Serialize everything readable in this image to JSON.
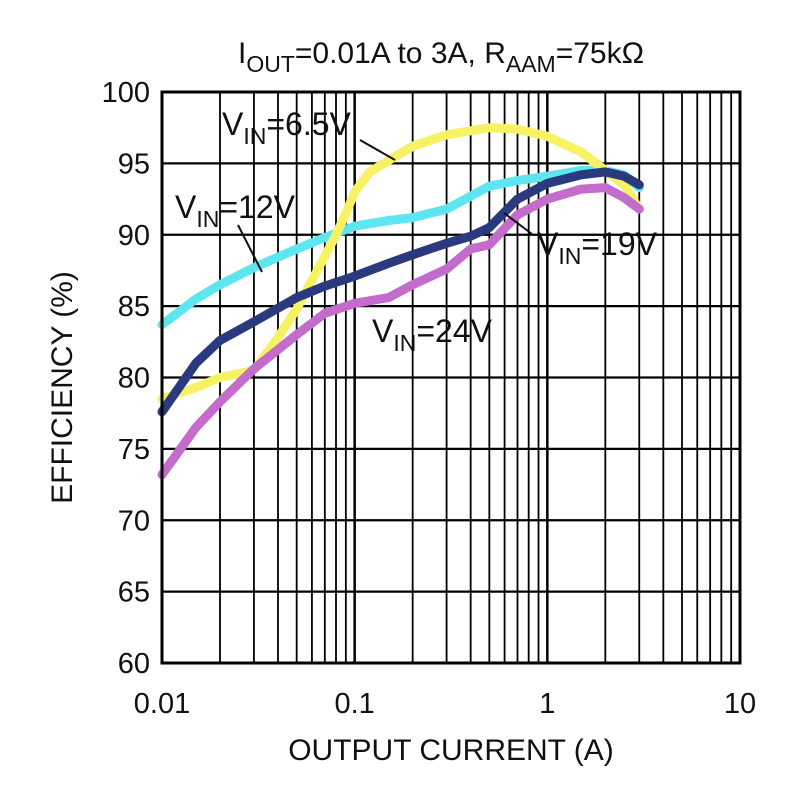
{
  "chart_data": {
    "type": "line",
    "title": {
      "parts": [
        "I",
        "OUT",
        "=0.01A to 3A, R",
        "AAM",
        "=75kΩ"
      ]
    },
    "xlabel": "OUTPUT CURRENT (A)",
    "ylabel": "EFFICIENCY (%)",
    "xscale": "log",
    "xlim": [
      0.01,
      10
    ],
    "ylim": [
      60,
      100
    ],
    "xticks": [
      0.01,
      0.1,
      1,
      10
    ],
    "xtick_labels": [
      "0.01",
      "0.1",
      "1",
      "10"
    ],
    "yticks": [
      60,
      65,
      70,
      75,
      80,
      85,
      90,
      95,
      100
    ],
    "ytick_labels": [
      "60",
      "65",
      "70",
      "75",
      "80",
      "85",
      "90",
      "95",
      "100"
    ],
    "grid": true,
    "series": [
      {
        "name": {
          "parts": [
            "V",
            "IN",
            "=12V"
          ]
        },
        "color": "#5ee6f0",
        "x": [
          0.01,
          0.015,
          0.02,
          0.03,
          0.05,
          0.07,
          0.1,
          0.15,
          0.2,
          0.3,
          0.5,
          0.7,
          1.0,
          1.5,
          2.0,
          2.5,
          3.0
        ],
        "y": [
          83.7,
          85.5,
          86.5,
          87.7,
          89.0,
          89.8,
          90.6,
          91.0,
          91.2,
          91.8,
          93.4,
          93.8,
          94.1,
          94.5,
          94.5,
          94.2,
          93.3
        ]
      },
      {
        "name": {
          "parts": [
            "V",
            "IN",
            "=6.5V"
          ]
        },
        "color": "#f7f263",
        "x": [
          0.01,
          0.015,
          0.02,
          0.03,
          0.04,
          0.05,
          0.06,
          0.07,
          0.08,
          0.09,
          0.1,
          0.12,
          0.15,
          0.2,
          0.3,
          0.5,
          0.7,
          1.0,
          1.5,
          2.0,
          2.5,
          3.0
        ],
        "y": [
          78.5,
          79.3,
          80.0,
          80.5,
          82.8,
          84.8,
          86.8,
          88.5,
          90.0,
          91.5,
          93.0,
          94.4,
          95.2,
          96.2,
          97.0,
          97.5,
          97.4,
          96.9,
          95.8,
          94.5,
          93.5,
          91.8
        ]
      },
      {
        "name": {
          "parts": [
            "V",
            "IN",
            "=19V"
          ]
        },
        "color": "#2b3a7e",
        "x": [
          0.01,
          0.015,
          0.02,
          0.03,
          0.05,
          0.07,
          0.1,
          0.15,
          0.2,
          0.3,
          0.4,
          0.5,
          0.7,
          1.0,
          1.5,
          2.0,
          2.5,
          3.0
        ],
        "y": [
          77.6,
          81.0,
          82.6,
          83.9,
          85.6,
          86.4,
          87.1,
          88.0,
          88.6,
          89.4,
          89.9,
          90.5,
          92.5,
          93.6,
          94.2,
          94.4,
          94.1,
          93.5
        ]
      },
      {
        "name": {
          "parts": [
            "V",
            "IN",
            "=24V"
          ]
        },
        "color": "#c36ccb",
        "x": [
          0.01,
          0.015,
          0.02,
          0.03,
          0.05,
          0.07,
          0.1,
          0.15,
          0.2,
          0.3,
          0.4,
          0.5,
          0.7,
          1.0,
          1.5,
          2.0,
          2.5,
          3.0
        ],
        "y": [
          73.2,
          76.5,
          78.3,
          80.6,
          83.0,
          84.5,
          85.2,
          85.6,
          86.5,
          87.6,
          89.0,
          89.3,
          91.4,
          92.5,
          93.2,
          93.3,
          92.6,
          91.8
        ]
      }
    ]
  }
}
